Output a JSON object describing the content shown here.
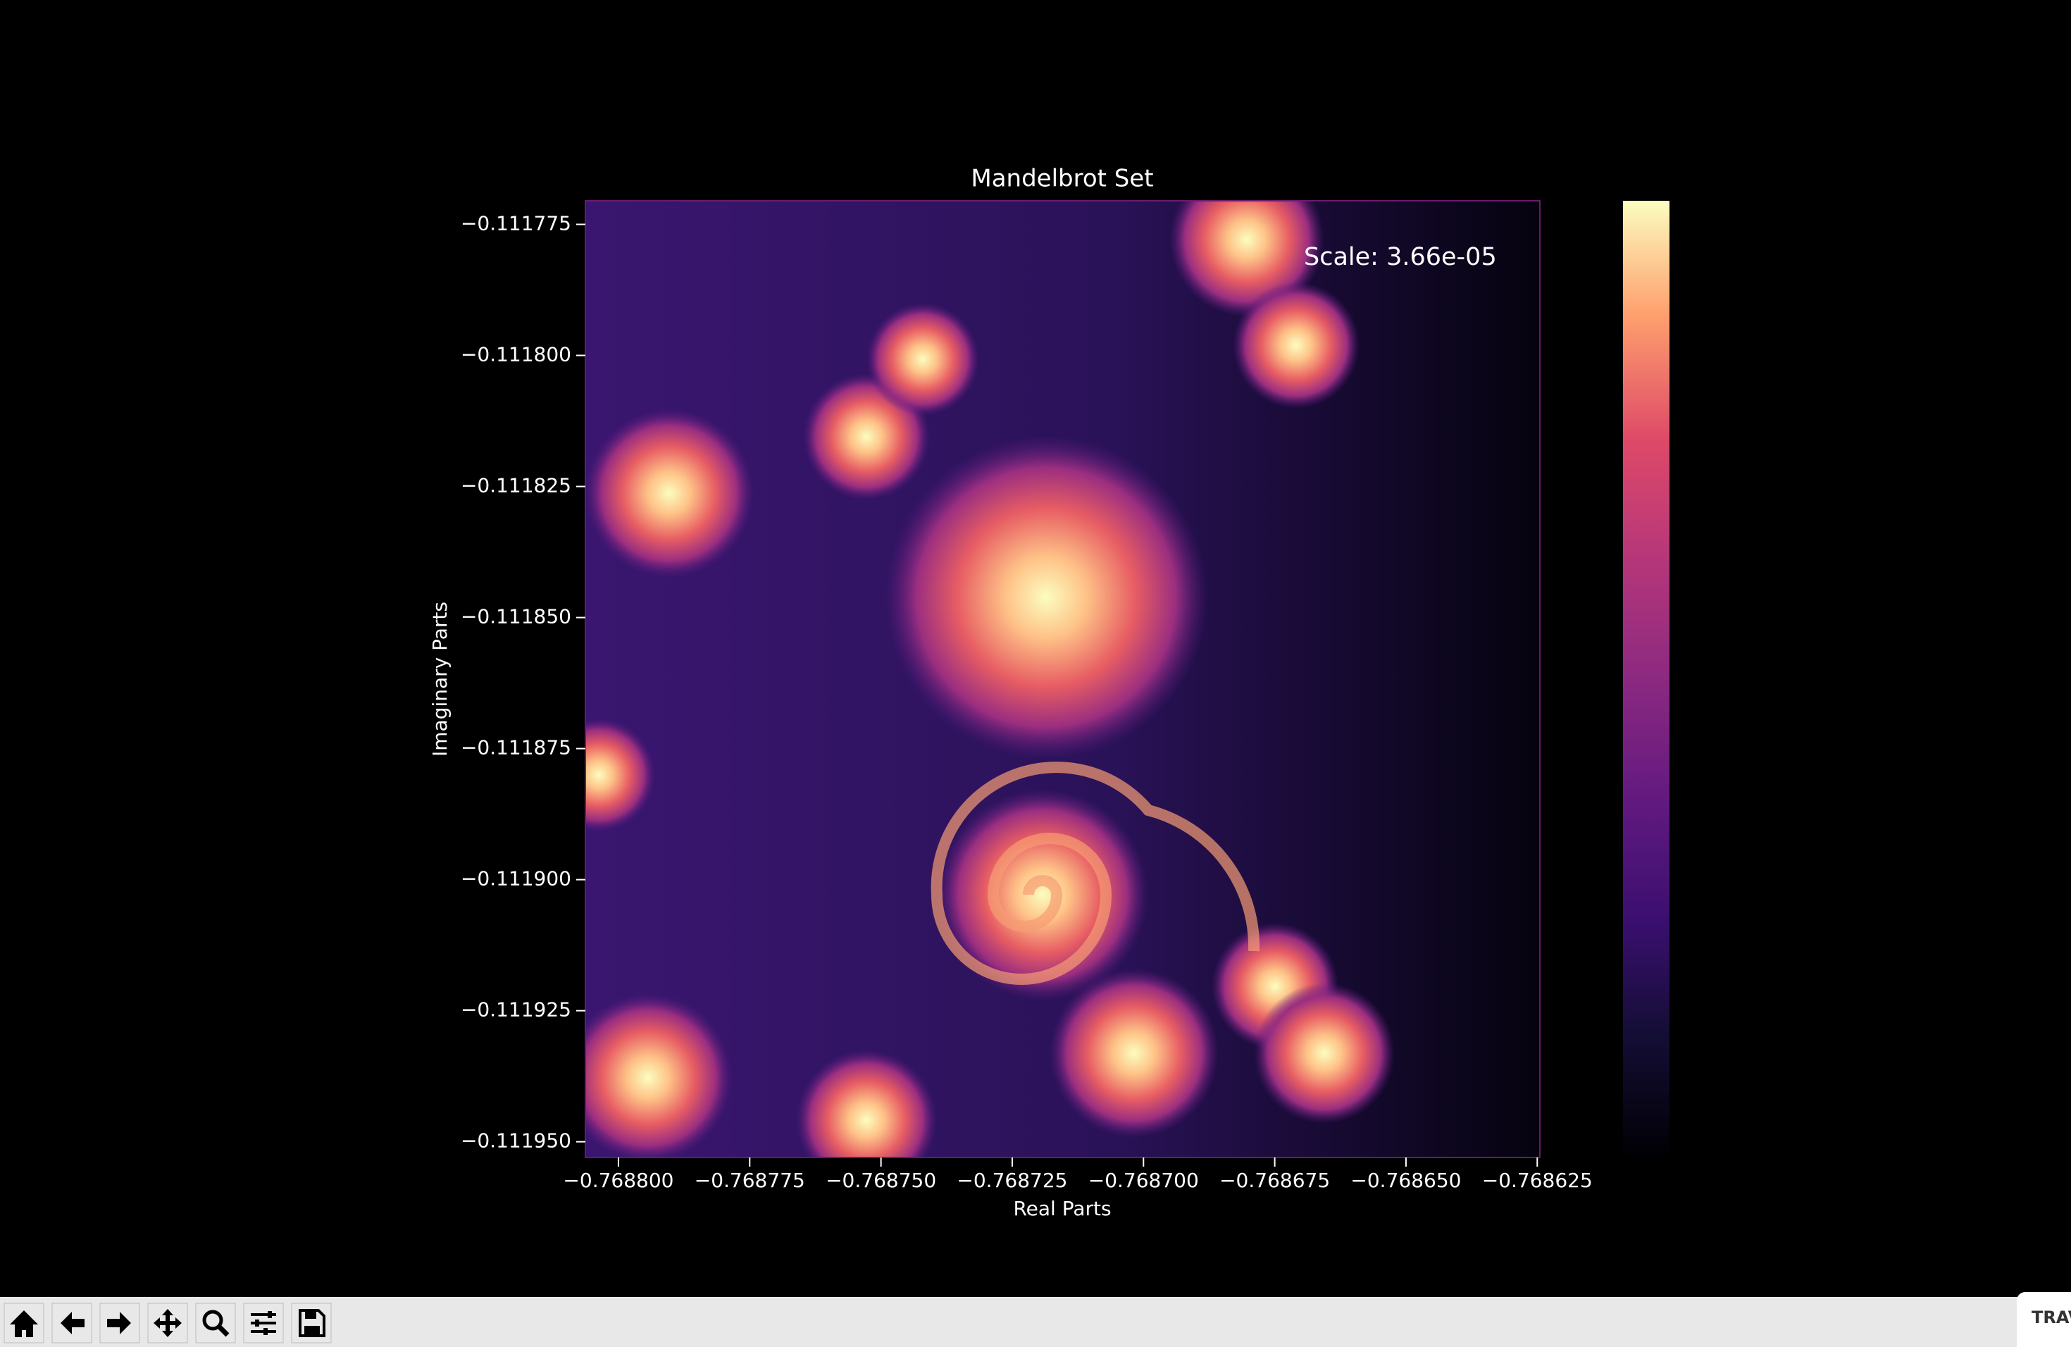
{
  "chart_data": {
    "type": "image",
    "title": "Mandelbrot Set",
    "xlabel": "Real Parts",
    "ylabel": "Imaginary Parts",
    "annotation": "Scale: 3.66e-05",
    "xlim": [
      -0.7688063,
      -0.7686245
    ],
    "ylim": [
      -0.111953,
      -0.1117705
    ],
    "xticks": [
      {
        "value": -0.7688,
        "label": "−0.768800"
      },
      {
        "value": -0.768775,
        "label": "−0.768775"
      },
      {
        "value": -0.76875,
        "label": "−0.768750"
      },
      {
        "value": -0.768725,
        "label": "−0.768725"
      },
      {
        "value": -0.7687,
        "label": "−0.768700"
      },
      {
        "value": -0.768675,
        "label": "−0.768675"
      },
      {
        "value": -0.76865,
        "label": "−0.768650"
      },
      {
        "value": -0.768625,
        "label": "−0.768625"
      }
    ],
    "yticks": [
      {
        "value": -0.111775,
        "label": "−0.111775"
      },
      {
        "value": -0.1118,
        "label": "−0.111800"
      },
      {
        "value": -0.111825,
        "label": "−0.111825"
      },
      {
        "value": -0.11185,
        "label": "−0.111850"
      },
      {
        "value": -0.111875,
        "label": "−0.111875"
      },
      {
        "value": -0.1119,
        "label": "−0.111900"
      },
      {
        "value": -0.111925,
        "label": "−0.111925"
      },
      {
        "value": -0.11195,
        "label": "−0.111950"
      }
    ]
  },
  "side_panel": "TRAV"
}
